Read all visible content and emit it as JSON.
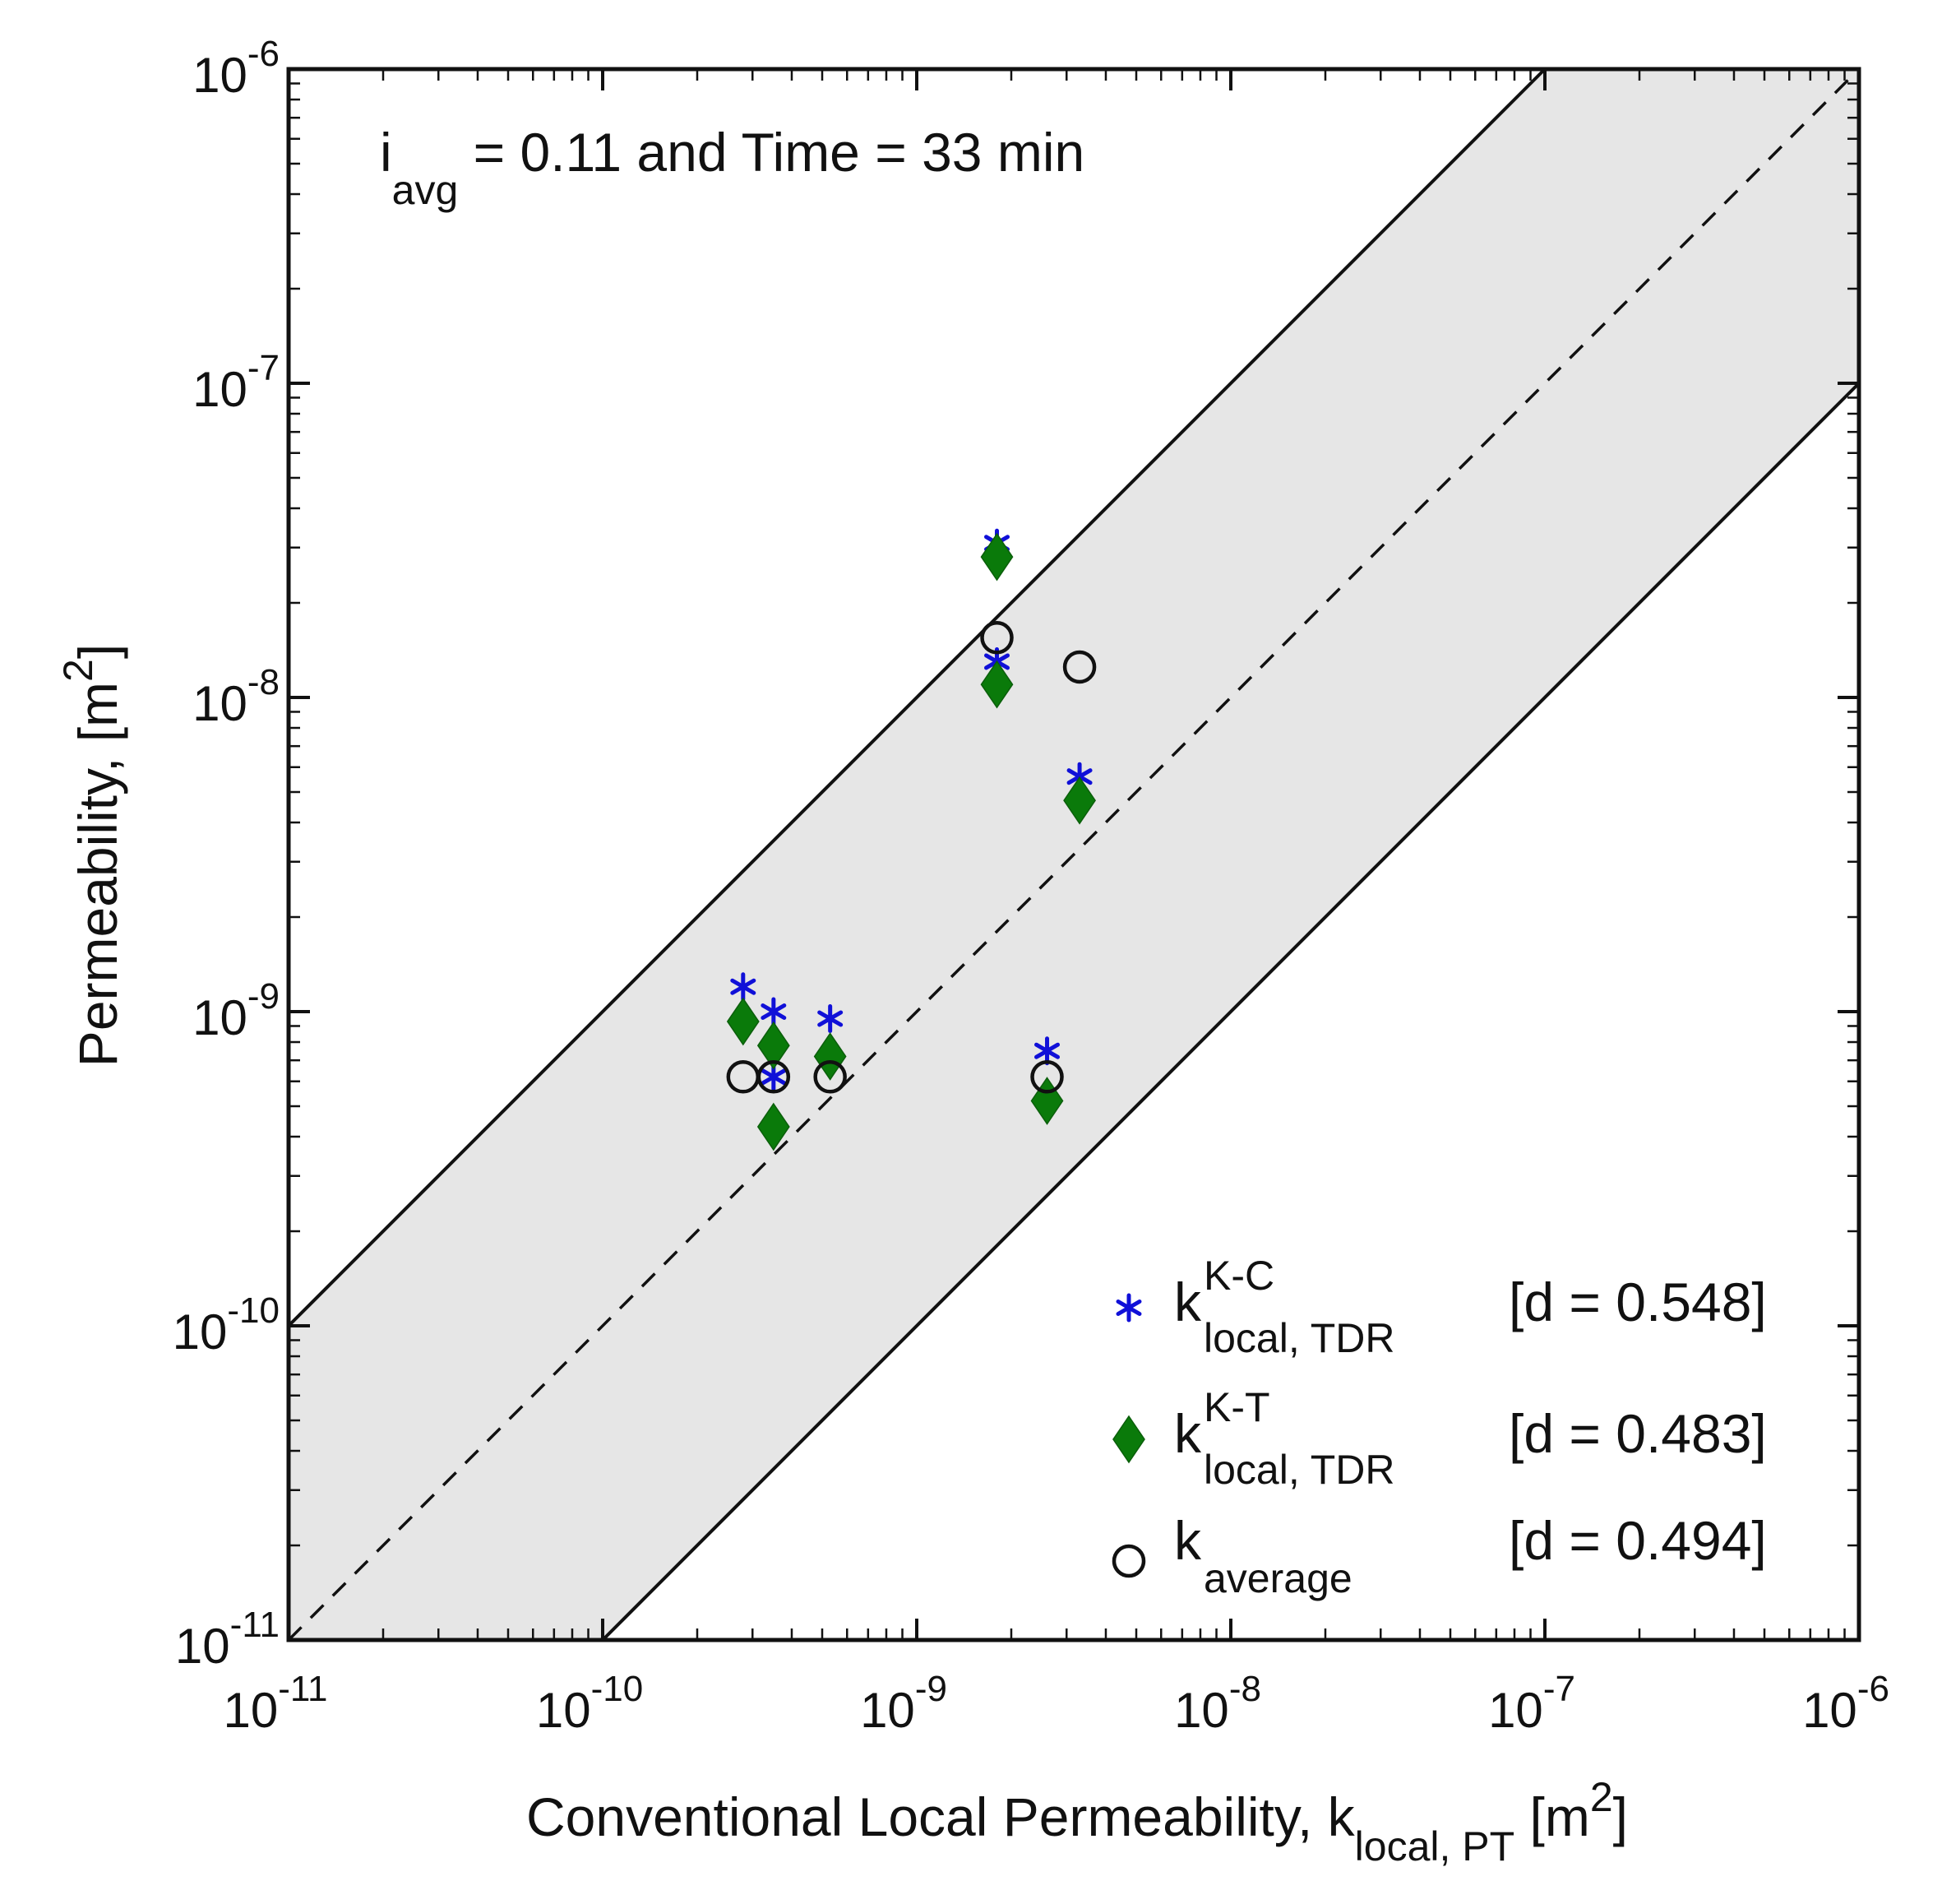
{
  "chart_data": {
    "type": "scatter",
    "x_scale": "log",
    "y_scale": "log",
    "xlim": [
      1e-11,
      1e-06
    ],
    "ylim": [
      1e-11,
      1e-06
    ],
    "annotation": {
      "main": "i",
      "sub": "avg",
      "rest": " = 0.11 and Time = 33 min"
    },
    "xlabel": {
      "main": "Conventional Local Permeability, k",
      "sub": "local, PT",
      "tail_pre": " [m",
      "tail_sup": "2",
      "tail_post": "]"
    },
    "ylabel": {
      "main": "Permeability, [m",
      "sup": "2",
      "post": "]"
    },
    "ticks": [
      {
        "base": "10",
        "exp": "-11",
        "value": 1e-11
      },
      {
        "base": "10",
        "exp": "-10",
        "value": 1e-10
      },
      {
        "base": "10",
        "exp": "-9",
        "value": 1e-09
      },
      {
        "base": "10",
        "exp": "-8",
        "value": 1e-08
      },
      {
        "base": "10",
        "exp": "-7",
        "value": 1e-07
      },
      {
        "base": "10",
        "exp": "-6",
        "value": 1e-06
      }
    ],
    "reference_lines": [
      {
        "name": "1:1 line",
        "factor": 1,
        "style": "dashed"
      },
      {
        "name": "upper bound (x10)",
        "factor": 10,
        "style": "solid"
      },
      {
        "name": "lower bound (x0.1)",
        "factor": 0.1,
        "style": "solid"
      }
    ],
    "band": {
      "lower_factor": 0.1,
      "upper_factor": 10,
      "color": "#e6e6e6"
    },
    "series": [
      {
        "name": "k local,TDR K-C",
        "marker": "asterisk",
        "color": "#1010d8",
        "label": {
          "main": "k",
          "sup": "K-C",
          "sub": "local, TDR"
        },
        "d_label": "[d = 0.548]",
        "points": [
          {
            "x": 2.8e-10,
            "y": 1.2e-09
          },
          {
            "x": 3.5e-10,
            "y": 1e-09
          },
          {
            "x": 3.5e-10,
            "y": 6.2e-10
          },
          {
            "x": 5.3e-10,
            "y": 9.5e-10
          },
          {
            "x": 1.8e-09,
            "y": 3.1e-08
          },
          {
            "x": 1.8e-09,
            "y": 1.3e-08
          },
          {
            "x": 3.3e-09,
            "y": 5.6e-09
          },
          {
            "x": 2.6e-09,
            "y": 7.5e-10
          }
        ]
      },
      {
        "name": "k local,TDR K-T",
        "marker": "diamond",
        "color": "#0a7a0a",
        "label": {
          "main": "k",
          "sup": "K-T",
          "sub": "local, TDR"
        },
        "d_label": "[d = 0.483]",
        "points": [
          {
            "x": 2.8e-10,
            "y": 9.3e-10
          },
          {
            "x": 3.5e-10,
            "y": 7.8e-10
          },
          {
            "x": 3.5e-10,
            "y": 4.3e-10
          },
          {
            "x": 5.3e-10,
            "y": 7.2e-10
          },
          {
            "x": 1.8e-09,
            "y": 2.8e-08
          },
          {
            "x": 1.8e-09,
            "y": 1.1e-08
          },
          {
            "x": 3.3e-09,
            "y": 4.7e-09
          },
          {
            "x": 2.6e-09,
            "y": 5.2e-10
          }
        ]
      },
      {
        "name": "k average",
        "marker": "circle",
        "color": "#111111",
        "label": {
          "main": "k",
          "sup": "",
          "sub": "average"
        },
        "d_label": "[d = 0.494]",
        "points": [
          {
            "x": 2.8e-10,
            "y": 6.2e-10
          },
          {
            "x": 3.5e-10,
            "y": 6.2e-10
          },
          {
            "x": 5.3e-10,
            "y": 6.2e-10
          },
          {
            "x": 1.8e-09,
            "y": 1.55e-08
          },
          {
            "x": 3.3e-09,
            "y": 1.25e-08
          },
          {
            "x": 2.6e-09,
            "y": 6.2e-10
          }
        ]
      }
    ]
  }
}
